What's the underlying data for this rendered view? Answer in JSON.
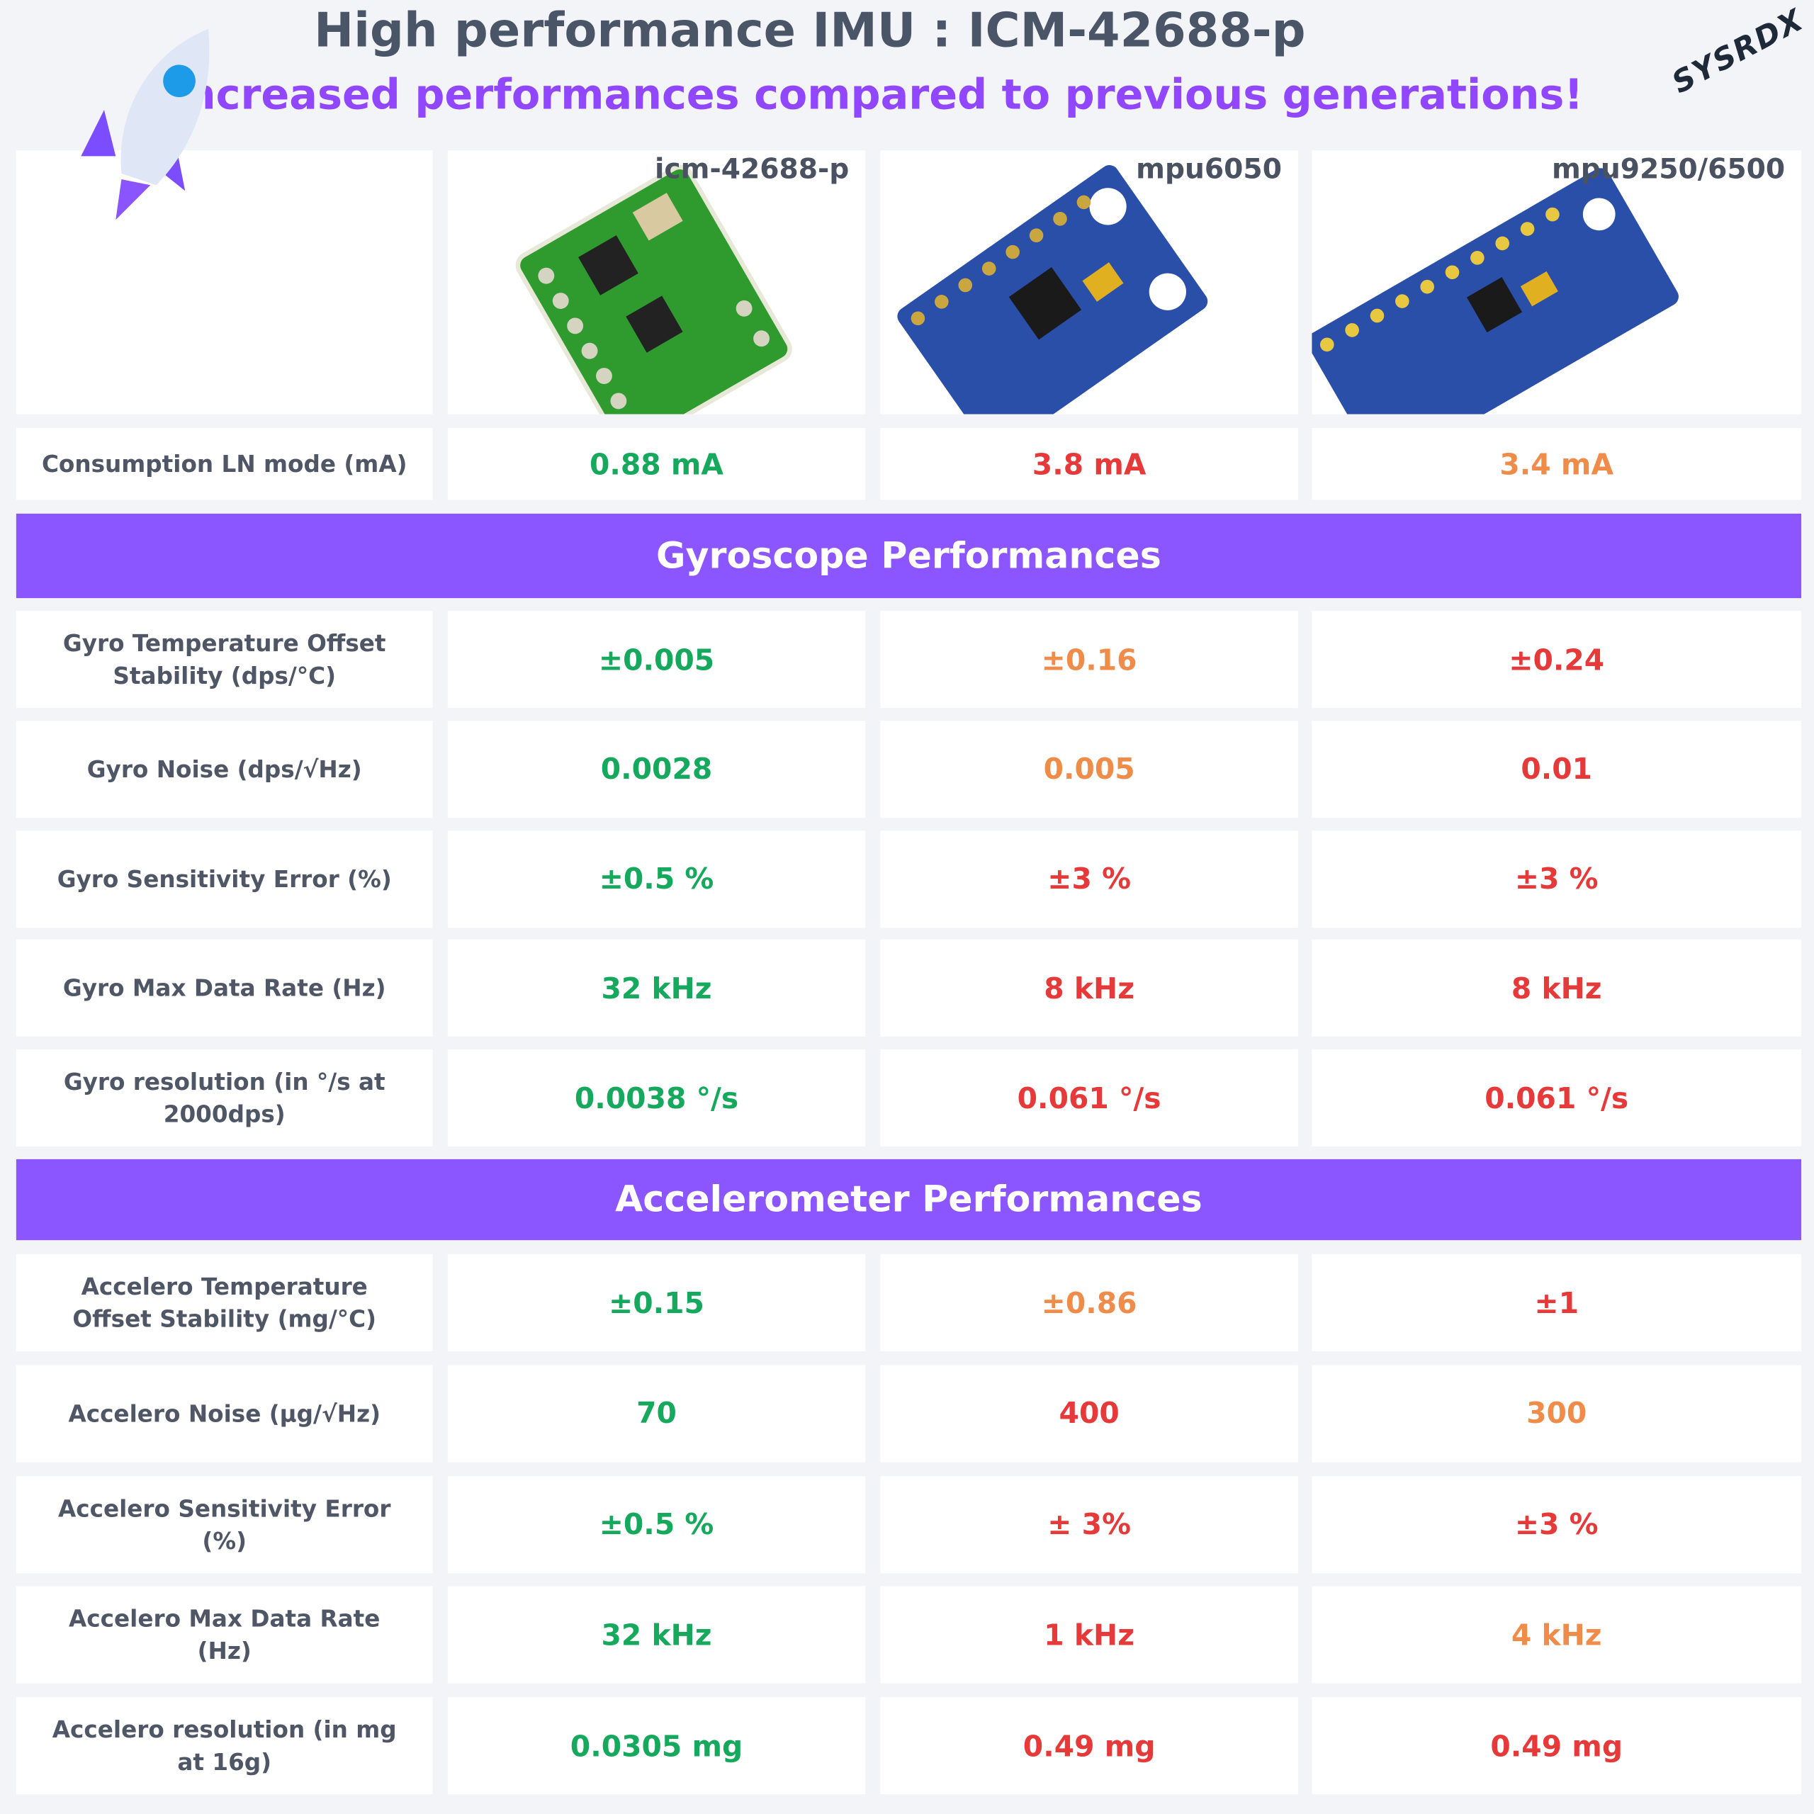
{
  "header": {
    "title": "High performance IMU : ICM-42688-p",
    "subtitle": "Increased performances compared to previous generations!",
    "logo": "SYSRDX"
  },
  "table": {
    "columns": [
      "icm-42688-p",
      "mpu6050",
      "mpu9250/6500"
    ],
    "rows": [
      {
        "label": "Consumption LN mode (mA)",
        "cells": [
          {
            "text": "0.88 mA",
            "color": "#16a85c"
          },
          {
            "text": "3.8 mA",
            "color": "#e5393a"
          },
          {
            "text": "3.4 mA",
            "color": "#f08c4a"
          }
        ]
      }
    ],
    "sections": [
      {
        "title": "Gyroscope Performances",
        "rows": [
          {
            "label": "Gyro Temperature Offset Stability (dps/°C)",
            "cells": [
              {
                "text": "±0.005",
                "color": "#16a85c"
              },
              {
                "text": "±0.16",
                "color": "#f08c4a"
              },
              {
                "text": "±0.24",
                "color": "#e5393a"
              }
            ]
          },
          {
            "label": "Gyro Noise (dps/√Hz)",
            "cells": [
              {
                "text": "0.0028",
                "color": "#16a85c"
              },
              {
                "text": "0.005",
                "color": "#f08c4a"
              },
              {
                "text": "0.01",
                "color": "#e5393a"
              }
            ]
          },
          {
            "label": "Gyro Sensitivity Error (%)",
            "cells": [
              {
                "text": "±0.5 %",
                "color": "#16a85c"
              },
              {
                "text": "±3 %",
                "color": "#e5393a"
              },
              {
                "text": "±3 %",
                "color": "#e5393a"
              }
            ]
          },
          {
            "label": "Gyro Max Data Rate (Hz)",
            "cells": [
              {
                "text": "32 kHz",
                "color": "#16a85c"
              },
              {
                "text": "8 kHz",
                "color": "#e5393a"
              },
              {
                "text": "8 kHz",
                "color": "#e5393a"
              }
            ]
          },
          {
            "label": "Gyro resolution (in °/s at 2000dps)",
            "cells": [
              {
                "text": "0.0038 °/s",
                "color": "#16a85c"
              },
              {
                "text": "0.061 °/s",
                "color": "#e5393a"
              },
              {
                "text": "0.061 °/s",
                "color": "#e5393a"
              }
            ]
          }
        ]
      },
      {
        "title": "Accelerometer Performances",
        "rows": [
          {
            "label": "Accelero Temperature Offset Stability (mg/°C)",
            "cells": [
              {
                "text": "±0.15",
                "color": "#16a85c"
              },
              {
                "text": "±0.86",
                "color": "#f08c4a"
              },
              {
                "text": "±1",
                "color": "#e5393a"
              }
            ]
          },
          {
            "label": "Accelero Noise (µg/√Hz)",
            "cells": [
              {
                "text": "70",
                "color": "#16a85c"
              },
              {
                "text": "400",
                "color": "#e5393a"
              },
              {
                "text": "300",
                "color": "#f08c4a"
              }
            ]
          },
          {
            "label": "Accelero Sensitivity Error (%)",
            "cells": [
              {
                "text": "±0.5 %",
                "color": "#16a85c"
              },
              {
                "text": "± 3%",
                "color": "#e5393a"
              },
              {
                "text": "±3 %",
                "color": "#e5393a"
              }
            ]
          },
          {
            "label": "Accelero Max Data Rate (Hz)",
            "cells": [
              {
                "text": "32 kHz",
                "color": "#16a85c"
              },
              {
                "text": "1 kHz",
                "color": "#e5393a"
              },
              {
                "text": "4 kHz",
                "color": "#f08c4a"
              }
            ]
          },
          {
            "label": "Accelero resolution (in mg at 16g)",
            "cells": [
              {
                "text": "0.0305 mg",
                "color": "#16a85c"
              },
              {
                "text": "0.49 mg",
                "color": "#e5393a"
              },
              {
                "text": "0.49 mg",
                "color": "#e5393a"
              }
            ]
          }
        ]
      }
    ]
  }
}
